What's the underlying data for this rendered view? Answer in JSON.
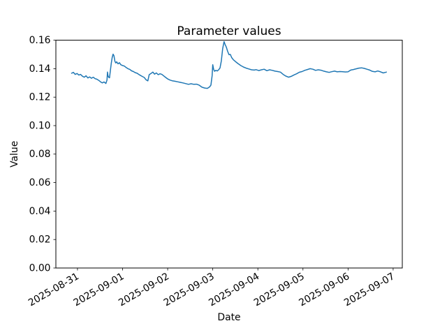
{
  "figure": {
    "background": "#ffffff",
    "axes_background": "#ffffff",
    "spine_color": "#000000",
    "text_color": "#000000"
  },
  "chart_data": {
    "type": "line",
    "title": "Parameter values",
    "xlabel": "Date",
    "ylabel": "Value",
    "grid": false,
    "legend": null,
    "x_unit": "days since 2025-08-31 00:00",
    "xlim": [
      -0.479,
      7.203
    ],
    "ylim": [
      0.0,
      0.16
    ],
    "xticks": [
      0,
      1,
      2,
      3,
      4,
      5,
      6,
      7
    ],
    "xtick_labels": [
      "2025-08-31",
      "2025-09-01",
      "2025-09-02",
      "2025-09-03",
      "2025-09-04",
      "2025-09-05",
      "2025-09-06",
      "2025-09-07"
    ],
    "xtick_rotation_deg": 30,
    "yticks": [
      0.0,
      0.02,
      0.04,
      0.06,
      0.08,
      0.1,
      0.12,
      0.14,
      0.16
    ],
    "ytick_labels": [
      "0.00",
      "0.02",
      "0.04",
      "0.06",
      "0.08",
      "0.10",
      "0.12",
      "0.14",
      "0.16"
    ],
    "series": [
      {
        "name": "parameter-value",
        "color": "#1f77b4",
        "line_width": 1.5,
        "points": [
          [
            -0.13,
            0.1368
          ],
          [
            -0.09,
            0.1374
          ],
          [
            -0.05,
            0.136
          ],
          [
            -0.01,
            0.1366
          ],
          [
            0.03,
            0.1355
          ],
          [
            0.07,
            0.136
          ],
          [
            0.11,
            0.1347
          ],
          [
            0.15,
            0.134
          ],
          [
            0.19,
            0.135
          ],
          [
            0.23,
            0.1335
          ],
          [
            0.27,
            0.1342
          ],
          [
            0.31,
            0.1333
          ],
          [
            0.35,
            0.134
          ],
          [
            0.39,
            0.133
          ],
          [
            0.43,
            0.1326
          ],
          [
            0.47,
            0.1318
          ],
          [
            0.51,
            0.1308
          ],
          [
            0.55,
            0.13
          ],
          [
            0.59,
            0.1307
          ],
          [
            0.63,
            0.1296
          ],
          [
            0.655,
            0.132
          ],
          [
            0.665,
            0.1376
          ],
          [
            0.675,
            0.1352
          ],
          [
            0.69,
            0.134
          ],
          [
            0.71,
            0.1336
          ],
          [
            0.73,
            0.139
          ],
          [
            0.75,
            0.144
          ],
          [
            0.77,
            0.1478
          ],
          [
            0.79,
            0.1502
          ],
          [
            0.81,
            0.149
          ],
          [
            0.83,
            0.1452
          ],
          [
            0.85,
            0.144
          ],
          [
            0.87,
            0.1448
          ],
          [
            0.9,
            0.1434
          ],
          [
            0.93,
            0.1442
          ],
          [
            0.96,
            0.1428
          ],
          [
            1.0,
            0.1422
          ],
          [
            1.04,
            0.1418
          ],
          [
            1.08,
            0.1408
          ],
          [
            1.12,
            0.14
          ],
          [
            1.16,
            0.1395
          ],
          [
            1.2,
            0.1385
          ],
          [
            1.24,
            0.138
          ],
          [
            1.28,
            0.1372
          ],
          [
            1.32,
            0.1368
          ],
          [
            1.36,
            0.136
          ],
          [
            1.4,
            0.1352
          ],
          [
            1.44,
            0.1345
          ],
          [
            1.48,
            0.1338
          ],
          [
            1.52,
            0.1322
          ],
          [
            1.56,
            0.1314
          ],
          [
            1.59,
            0.1358
          ],
          [
            1.63,
            0.1366
          ],
          [
            1.67,
            0.1376
          ],
          [
            1.71,
            0.1362
          ],
          [
            1.75,
            0.137
          ],
          [
            1.79,
            0.1358
          ],
          [
            1.83,
            0.1364
          ],
          [
            1.87,
            0.136
          ],
          [
            1.91,
            0.135
          ],
          [
            1.95,
            0.134
          ],
          [
            2.0,
            0.1328
          ],
          [
            2.05,
            0.132
          ],
          [
            2.1,
            0.1315
          ],
          [
            2.16,
            0.1312
          ],
          [
            2.22,
            0.1308
          ],
          [
            2.28,
            0.1304
          ],
          [
            2.34,
            0.13
          ],
          [
            2.4,
            0.1295
          ],
          [
            2.46,
            0.129
          ],
          [
            2.52,
            0.1294
          ],
          [
            2.58,
            0.129
          ],
          [
            2.64,
            0.1291
          ],
          [
            2.7,
            0.1284
          ],
          [
            2.76,
            0.127
          ],
          [
            2.82,
            0.1264
          ],
          [
            2.88,
            0.1262
          ],
          [
            2.93,
            0.1272
          ],
          [
            2.96,
            0.1285
          ],
          [
            2.985,
            0.135
          ],
          [
            3.0,
            0.1428
          ],
          [
            3.02,
            0.1395
          ],
          [
            3.04,
            0.1382
          ],
          [
            3.07,
            0.1388
          ],
          [
            3.1,
            0.1384
          ],
          [
            3.13,
            0.1392
          ],
          [
            3.16,
            0.1405
          ],
          [
            3.19,
            0.1455
          ],
          [
            3.22,
            0.154
          ],
          [
            3.25,
            0.159
          ],
          [
            3.27,
            0.1572
          ],
          [
            3.3,
            0.1552
          ],
          [
            3.33,
            0.1522
          ],
          [
            3.36,
            0.1498
          ],
          [
            3.39,
            0.15
          ],
          [
            3.42,
            0.1478
          ],
          [
            3.46,
            0.1462
          ],
          [
            3.51,
            0.1448
          ],
          [
            3.56,
            0.1436
          ],
          [
            3.62,
            0.1422
          ],
          [
            3.68,
            0.1412
          ],
          [
            3.74,
            0.1404
          ],
          [
            3.8,
            0.1398
          ],
          [
            3.86,
            0.1392
          ],
          [
            3.92,
            0.139
          ],
          [
            3.96,
            0.1393
          ],
          [
            4.02,
            0.1387
          ],
          [
            4.08,
            0.1392
          ],
          [
            4.14,
            0.1396
          ],
          [
            4.2,
            0.1386
          ],
          [
            4.26,
            0.1392
          ],
          [
            4.32,
            0.1388
          ],
          [
            4.38,
            0.1383
          ],
          [
            4.44,
            0.138
          ],
          [
            4.5,
            0.1376
          ],
          [
            4.56,
            0.136
          ],
          [
            4.62,
            0.1348
          ],
          [
            4.68,
            0.134
          ],
          [
            4.74,
            0.1346
          ],
          [
            4.8,
            0.1356
          ],
          [
            4.86,
            0.1364
          ],
          [
            4.92,
            0.1375
          ],
          [
            4.98,
            0.138
          ],
          [
            5.04,
            0.1388
          ],
          [
            5.1,
            0.1394
          ],
          [
            5.16,
            0.14
          ],
          [
            5.22,
            0.1396
          ],
          [
            5.28,
            0.1388
          ],
          [
            5.34,
            0.1392
          ],
          [
            5.4,
            0.1389
          ],
          [
            5.46,
            0.1383
          ],
          [
            5.52,
            0.1378
          ],
          [
            5.58,
            0.1374
          ],
          [
            5.64,
            0.1379
          ],
          [
            5.7,
            0.1383
          ],
          [
            5.76,
            0.1378
          ],
          [
            5.82,
            0.138
          ],
          [
            5.88,
            0.1379
          ],
          [
            5.94,
            0.1377
          ],
          [
            6.0,
            0.1378
          ],
          [
            6.06,
            0.139
          ],
          [
            6.12,
            0.1394
          ],
          [
            6.18,
            0.1399
          ],
          [
            6.24,
            0.1404
          ],
          [
            6.3,
            0.1406
          ],
          [
            6.36,
            0.1402
          ],
          [
            6.42,
            0.1396
          ],
          [
            6.48,
            0.139
          ],
          [
            6.54,
            0.1381
          ],
          [
            6.6,
            0.1378
          ],
          [
            6.66,
            0.1384
          ],
          [
            6.72,
            0.1378
          ],
          [
            6.78,
            0.137
          ],
          [
            6.85,
            0.1376
          ]
        ]
      }
    ]
  }
}
